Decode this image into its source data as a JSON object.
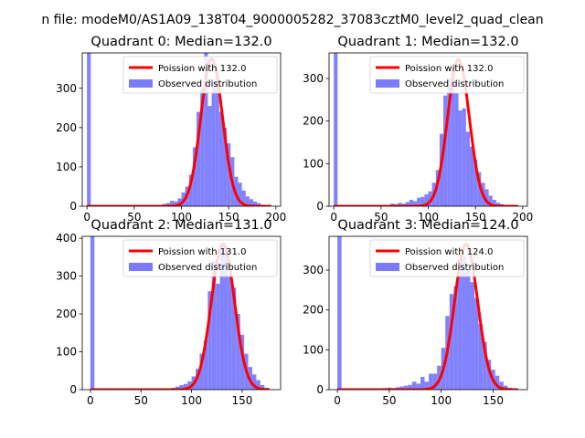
{
  "figure": {
    "suptitle": "n file: modeM0/AS1A09_138T04_9000005282_37083cztM0_level2_quad_clean"
  },
  "chart_data": [
    {
      "type": "histogram",
      "title": "Quadrant 0: Median=132.0",
      "xlim": [
        -5,
        205
      ],
      "ylim": [
        0,
        390
      ],
      "xticks": [
        0,
        50,
        100,
        150,
        200
      ],
      "yticks": [
        0,
        100,
        200,
        300
      ],
      "legend_position": "top-right",
      "histogram": {
        "name": "Observed distribution",
        "color": "#7b7bff",
        "bin_width": 4.0,
        "bins": [
          {
            "x0": 0,
            "count": 390
          },
          {
            "x0": 80,
            "count": 6
          },
          {
            "x0": 84,
            "count": 8
          },
          {
            "x0": 88,
            "count": 14
          },
          {
            "x0": 92,
            "count": 12
          },
          {
            "x0": 96,
            "count": 20
          },
          {
            "x0": 100,
            "count": 35
          },
          {
            "x0": 104,
            "count": 50
          },
          {
            "x0": 108,
            "count": 80
          },
          {
            "x0": 112,
            "count": 150
          },
          {
            "x0": 116,
            "count": 240
          },
          {
            "x0": 120,
            "count": 300
          },
          {
            "x0": 124,
            "count": 390
          },
          {
            "x0": 128,
            "count": 255
          },
          {
            "x0": 132,
            "count": 320
          },
          {
            "x0": 136,
            "count": 330
          },
          {
            "x0": 140,
            "count": 240
          },
          {
            "x0": 144,
            "count": 200
          },
          {
            "x0": 148,
            "count": 160
          },
          {
            "x0": 152,
            "count": 125
          },
          {
            "x0": 156,
            "count": 75
          },
          {
            "x0": 160,
            "count": 60
          },
          {
            "x0": 164,
            "count": 40
          },
          {
            "x0": 168,
            "count": 25
          },
          {
            "x0": 172,
            "count": 18
          },
          {
            "x0": 176,
            "count": 12
          },
          {
            "x0": 180,
            "count": 8
          },
          {
            "x0": 184,
            "count": 4
          }
        ]
      },
      "poisson": {
        "name": "Poission with 132.0",
        "color": "#ff0000",
        "mean": 132.0,
        "peak": 375,
        "x_range": [
          0,
          195
        ]
      }
    },
    {
      "type": "histogram",
      "title": "Quadrant 1: Median=132.0",
      "xlim": [
        -5,
        205
      ],
      "ylim": [
        0,
        360
      ],
      "xticks": [
        0,
        50,
        100,
        150,
        200
      ],
      "yticks": [
        0,
        100,
        200,
        300
      ],
      "legend_position": "top-right",
      "histogram": {
        "name": "Observed distribution",
        "color": "#7b7bff",
        "bin_width": 4.0,
        "bins": [
          {
            "x0": 0,
            "count": 360
          },
          {
            "x0": 52,
            "count": 2
          },
          {
            "x0": 56,
            "count": 3
          },
          {
            "x0": 60,
            "count": 6
          },
          {
            "x0": 64,
            "count": 5
          },
          {
            "x0": 68,
            "count": 8
          },
          {
            "x0": 72,
            "count": 6
          },
          {
            "x0": 76,
            "count": 10
          },
          {
            "x0": 80,
            "count": 15
          },
          {
            "x0": 84,
            "count": 12
          },
          {
            "x0": 88,
            "count": 20
          },
          {
            "x0": 92,
            "count": 22
          },
          {
            "x0": 96,
            "count": 28
          },
          {
            "x0": 100,
            "count": 35
          },
          {
            "x0": 104,
            "count": 55
          },
          {
            "x0": 108,
            "count": 85
          },
          {
            "x0": 112,
            "count": 170
          },
          {
            "x0": 116,
            "count": 260
          },
          {
            "x0": 120,
            "count": 300
          },
          {
            "x0": 124,
            "count": 320
          },
          {
            "x0": 128,
            "count": 265
          },
          {
            "x0": 132,
            "count": 225
          },
          {
            "x0": 136,
            "count": 230
          },
          {
            "x0": 140,
            "count": 175
          },
          {
            "x0": 144,
            "count": 140
          },
          {
            "x0": 148,
            "count": 110
          },
          {
            "x0": 152,
            "count": 80
          },
          {
            "x0": 156,
            "count": 55
          },
          {
            "x0": 160,
            "count": 40
          },
          {
            "x0": 164,
            "count": 25
          },
          {
            "x0": 168,
            "count": 15
          },
          {
            "x0": 172,
            "count": 8
          },
          {
            "x0": 176,
            "count": 5
          }
        ]
      },
      "poisson": {
        "name": "Poission with 132.0",
        "color": "#ff0000",
        "mean": 132.0,
        "peak": 345,
        "x_range": [
          0,
          195
        ]
      }
    },
    {
      "type": "histogram",
      "title": "Quadrant 2: Median=131.0",
      "xlim": [
        -8,
        188
      ],
      "ylim": [
        0,
        405
      ],
      "xticks": [
        0,
        50,
        100,
        150
      ],
      "yticks": [
        0,
        100,
        200,
        300,
        400
      ],
      "legend_position": "top-right",
      "histogram": {
        "name": "Observed distribution",
        "color": "#7b7bff",
        "bin_width": 4.0,
        "bins": [
          {
            "x0": 0,
            "count": 405
          },
          {
            "x0": 76,
            "count": 3
          },
          {
            "x0": 80,
            "count": 5
          },
          {
            "x0": 84,
            "count": 8
          },
          {
            "x0": 88,
            "count": 12
          },
          {
            "x0": 92,
            "count": 15
          },
          {
            "x0": 96,
            "count": 22
          },
          {
            "x0": 100,
            "count": 35
          },
          {
            "x0": 104,
            "count": 55
          },
          {
            "x0": 108,
            "count": 95
          },
          {
            "x0": 112,
            "count": 130
          },
          {
            "x0": 116,
            "count": 260
          },
          {
            "x0": 120,
            "count": 340
          },
          {
            "x0": 124,
            "count": 280
          },
          {
            "x0": 128,
            "count": 385
          },
          {
            "x0": 132,
            "count": 360
          },
          {
            "x0": 136,
            "count": 300
          },
          {
            "x0": 140,
            "count": 270
          },
          {
            "x0": 144,
            "count": 200
          },
          {
            "x0": 148,
            "count": 145
          },
          {
            "x0": 152,
            "count": 95
          },
          {
            "x0": 156,
            "count": 60
          },
          {
            "x0": 160,
            "count": 40
          },
          {
            "x0": 164,
            "count": 25
          },
          {
            "x0": 168,
            "count": 12
          },
          {
            "x0": 172,
            "count": 5
          }
        ]
      },
      "poisson": {
        "name": "Poission with 131.0",
        "color": "#ff0000",
        "mean": 131.0,
        "peak": 385,
        "x_range": [
          0,
          177
        ]
      }
    },
    {
      "type": "histogram",
      "title": "Quadrant 3: Median=124.0",
      "xlim": [
        -8,
        183
      ],
      "ylim": [
        0,
        385
      ],
      "xticks": [
        0,
        50,
        100,
        150
      ],
      "yticks": [
        0,
        100,
        200,
        300
      ],
      "legend_position": "top-right",
      "histogram": {
        "name": "Observed distribution",
        "color": "#7b7bff",
        "bin_width": 4.0,
        "bins": [
          {
            "x0": 0,
            "count": 385
          },
          {
            "x0": 36,
            "count": 2
          },
          {
            "x0": 40,
            "count": 3
          },
          {
            "x0": 44,
            "count": 4
          },
          {
            "x0": 48,
            "count": 5
          },
          {
            "x0": 52,
            "count": 4
          },
          {
            "x0": 56,
            "count": 6
          },
          {
            "x0": 60,
            "count": 8
          },
          {
            "x0": 64,
            "count": 10
          },
          {
            "x0": 68,
            "count": 12
          },
          {
            "x0": 72,
            "count": 20
          },
          {
            "x0": 76,
            "count": 15
          },
          {
            "x0": 80,
            "count": 32
          },
          {
            "x0": 84,
            "count": 20
          },
          {
            "x0": 88,
            "count": 40
          },
          {
            "x0": 92,
            "count": 40
          },
          {
            "x0": 96,
            "count": 60
          },
          {
            "x0": 100,
            "count": 105
          },
          {
            "x0": 104,
            "count": 185
          },
          {
            "x0": 108,
            "count": 240
          },
          {
            "x0": 112,
            "count": 260
          },
          {
            "x0": 116,
            "count": 330
          },
          {
            "x0": 120,
            "count": 335
          },
          {
            "x0": 124,
            "count": 300
          },
          {
            "x0": 128,
            "count": 270
          },
          {
            "x0": 132,
            "count": 230
          },
          {
            "x0": 136,
            "count": 165
          },
          {
            "x0": 140,
            "count": 120
          },
          {
            "x0": 144,
            "count": 75
          },
          {
            "x0": 148,
            "count": 50
          },
          {
            "x0": 152,
            "count": 35
          },
          {
            "x0": 156,
            "count": 20
          },
          {
            "x0": 160,
            "count": 10
          },
          {
            "x0": 164,
            "count": 5
          }
        ]
      },
      "poisson": {
        "name": "Poission with 124.0",
        "color": "#ff0000",
        "mean": 124.0,
        "peak": 365,
        "x_range": [
          0,
          174
        ]
      }
    }
  ]
}
